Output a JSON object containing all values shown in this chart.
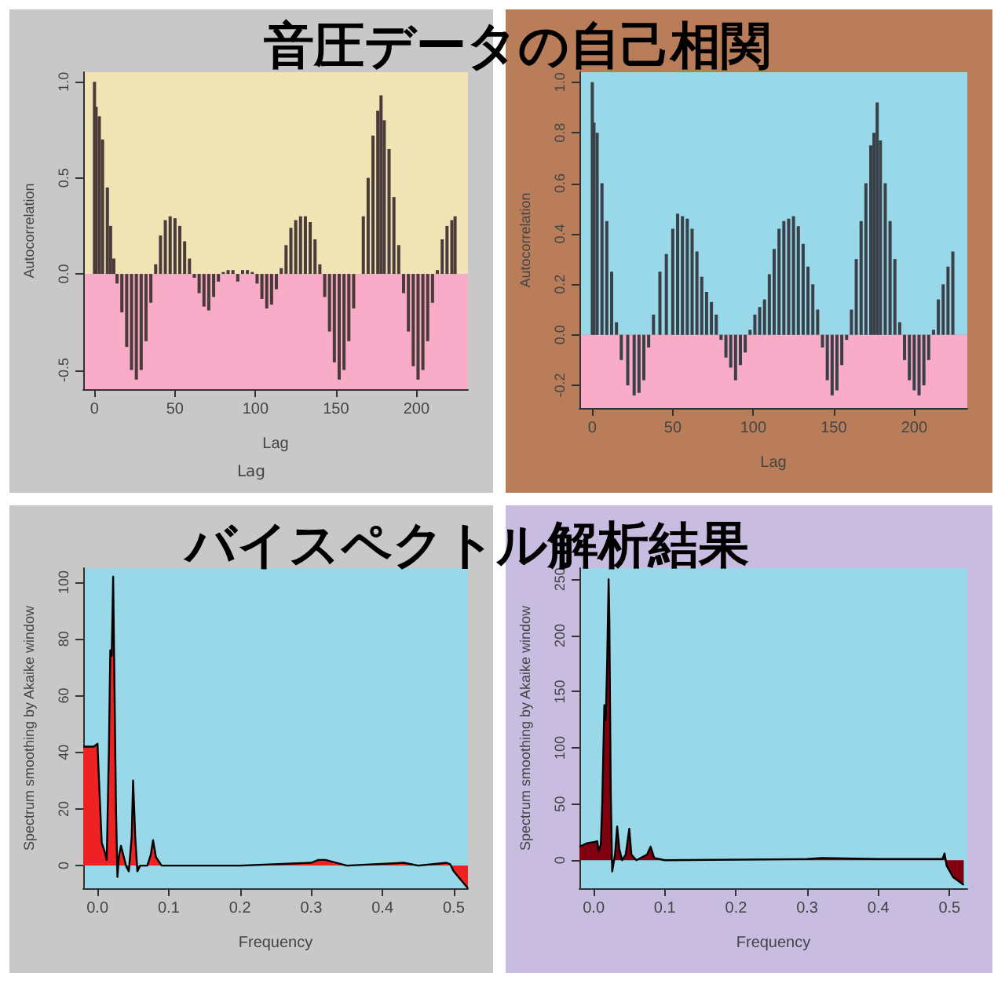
{
  "chart_data": [
    {
      "type": "bar",
      "title": "音圧データの自己相関",
      "xlabel": "Lag",
      "ylabel": "Autocorrelation",
      "annotations": [
        "Lag"
      ],
      "grid": false,
      "xlim": [
        -7,
        232
      ],
      "xticks": [
        0,
        50,
        100,
        150,
        200
      ],
      "ylim": [
        -0.6,
        1.05
      ],
      "yticks": [
        {
          "value": -0.5,
          "label": "-0.5"
        },
        {
          "value": 0,
          "label": "0.0"
        },
        {
          "value": 0.5,
          "label": "0.5"
        },
        {
          "value": 1,
          "label": "1.0"
        }
      ],
      "bands": [
        {
          "axis": "y",
          "from": 0,
          "to": 1.05,
          "color": "#f0e4b4"
        },
        {
          "axis": "y",
          "from": -0.6,
          "to": 0,
          "color": "#f8acc8"
        }
      ],
      "x": [
        0,
        1,
        3,
        5,
        8,
        10,
        12,
        14,
        17,
        20,
        23,
        26,
        29,
        32,
        35,
        38,
        41,
        44,
        47,
        50,
        53,
        56,
        59,
        62,
        65,
        68,
        71,
        74,
        77,
        80,
        83,
        86,
        89,
        92,
        95,
        98,
        101,
        104,
        107,
        110,
        113,
        116,
        119,
        122,
        125,
        128,
        131,
        134,
        137,
        140,
        143,
        146,
        149,
        152,
        155,
        158,
        161,
        164,
        167,
        170,
        173,
        176,
        178,
        180,
        183,
        186,
        189,
        192,
        195,
        198,
        201,
        204,
        207,
        210,
        213,
        216,
        219,
        222,
        224
      ],
      "series": [
        {
          "color": "#4a3a3a",
          "values": [
            1.0,
            0.87,
            0.82,
            0.7,
            0.45,
            0.25,
            0.08,
            -0.05,
            -0.2,
            -0.38,
            -0.5,
            -0.55,
            -0.5,
            -0.35,
            -0.15,
            0.05,
            0.2,
            0.28,
            0.3,
            0.29,
            0.25,
            0.17,
            0.08,
            -0.02,
            -0.1,
            -0.17,
            -0.19,
            -0.12,
            -0.04,
            0.01,
            0.02,
            0.02,
            -0.04,
            0.02,
            0.02,
            0.01,
            -0.05,
            -0.13,
            -0.18,
            -0.16,
            -0.08,
            0.03,
            0.15,
            0.24,
            0.28,
            0.3,
            0.3,
            0.27,
            0.18,
            0.05,
            -0.12,
            -0.3,
            -0.46,
            -0.55,
            -0.5,
            -0.35,
            -0.18,
            0.0,
            0.3,
            0.5,
            0.72,
            0.85,
            0.93,
            0.8,
            0.65,
            0.4,
            0.15,
            -0.1,
            -0.3,
            -0.48,
            -0.55,
            -0.5,
            -0.35,
            -0.15,
            0.02,
            0.18,
            0.25,
            0.28,
            0.3
          ]
        }
      ]
    },
    {
      "type": "bar",
      "xlabel": "Lag",
      "ylabel": "Autocorrelation",
      "grid": false,
      "xlim": [
        -8,
        233
      ],
      "xticks": [
        0,
        50,
        100,
        150,
        200
      ],
      "ylim": [
        -0.29,
        1.04
      ],
      "yticks": [
        {
          "value": -0.2,
          "label": "-0.2"
        },
        {
          "value": 0,
          "label": "0.0"
        },
        {
          "value": 0.2,
          "label": "0.2"
        },
        {
          "value": 0.4,
          "label": "0.4"
        },
        {
          "value": 0.6,
          "label": "0.6"
        },
        {
          "value": 0.8,
          "label": "0.8"
        },
        {
          "value": 1,
          "label": "1.0"
        }
      ],
      "bands": [
        {
          "axis": "y",
          "from": 0,
          "to": 1.04,
          "color": "#98d8e8"
        },
        {
          "axis": "y",
          "from": -0.29,
          "to": 0,
          "color": "#f8acc8"
        }
      ],
      "x": [
        0,
        1,
        3,
        6,
        9,
        12,
        15,
        18,
        22,
        26,
        29,
        32,
        35,
        38,
        42,
        46,
        50,
        53,
        56,
        59,
        62,
        65,
        68,
        71,
        74,
        77,
        80,
        83,
        86,
        89,
        92,
        95,
        98,
        101,
        104,
        107,
        110,
        113,
        116,
        119,
        122,
        125,
        128,
        131,
        134,
        137,
        140,
        143,
        146,
        149,
        152,
        155,
        158,
        161,
        164,
        167,
        170,
        173,
        175,
        177,
        179,
        182,
        185,
        188,
        191,
        194,
        197,
        200,
        203,
        206,
        209,
        212,
        215,
        218,
        221,
        224
      ],
      "series": [
        {
          "color": "#3a4048",
          "values": [
            1.0,
            0.84,
            0.8,
            0.6,
            0.45,
            0.25,
            0.05,
            -0.1,
            -0.2,
            -0.24,
            -0.23,
            -0.18,
            -0.05,
            0.08,
            0.25,
            0.32,
            0.42,
            0.48,
            0.47,
            0.46,
            0.42,
            0.33,
            0.23,
            0.17,
            0.13,
            0.08,
            -0.02,
            -0.09,
            -0.13,
            -0.18,
            -0.12,
            -0.07,
            0.02,
            0.08,
            0.11,
            0.14,
            0.24,
            0.34,
            0.42,
            0.45,
            0.46,
            0.47,
            0.43,
            0.36,
            0.27,
            0.2,
            0.1,
            -0.05,
            -0.18,
            -0.24,
            -0.22,
            -0.12,
            -0.02,
            0.1,
            0.3,
            0.45,
            0.6,
            0.75,
            0.8,
            0.92,
            0.77,
            0.6,
            0.45,
            0.3,
            0.05,
            -0.1,
            -0.18,
            -0.22,
            -0.24,
            -0.2,
            -0.1,
            0.02,
            0.14,
            0.2,
            0.27,
            0.33
          ]
        }
      ]
    },
    {
      "type": "area",
      "title": "バイスペクトル解析結果",
      "xlabel": "Frequency",
      "ylabel": "Spectrum smoothing by Akaike window",
      "grid": false,
      "xlim": [
        -0.02,
        0.52
      ],
      "xticks": [
        {
          "value": 0,
          "label": "0.0"
        },
        0.1,
        0.2,
        0.3,
        0.4,
        0.5
      ],
      "ylim": [
        -8,
        105
      ],
      "yticks": [
        0,
        20,
        40,
        60,
        80,
        100
      ],
      "bands": [
        {
          "axis": "y",
          "from": -8,
          "to": 105,
          "color": "#98d8e8"
        }
      ],
      "x": [
        -0.02,
        -0.005,
        0,
        0.003,
        0.006,
        0.01,
        0.013,
        0.016,
        0.018,
        0.02,
        0.022,
        0.024,
        0.026,
        0.028,
        0.03,
        0.033,
        0.036,
        0.04,
        0.044,
        0.048,
        0.05,
        0.053,
        0.056,
        0.06,
        0.07,
        0.075,
        0.078,
        0.082,
        0.09,
        0.2,
        0.3,
        0.31,
        0.32,
        0.35,
        0.43,
        0.45,
        0.49,
        0.495,
        0.5,
        0.51,
        0.52
      ],
      "series": [
        {
          "color": "#ee2222",
          "values": [
            42,
            42,
            43,
            25,
            8,
            5,
            2,
            40,
            76,
            74,
            102,
            60,
            20,
            -4,
            3,
            7,
            4,
            0,
            -2,
            10,
            30,
            10,
            -2,
            0,
            0,
            4,
            9,
            3,
            0,
            0,
            1,
            2,
            2,
            0,
            1,
            0,
            1,
            0.5,
            -2,
            -5,
            -8
          ]
        }
      ]
    },
    {
      "type": "area",
      "xlabel": "Frequency",
      "ylabel": "Spectrum smoothing by Akaike window",
      "grid": false,
      "xlim": [
        -0.02,
        0.525
      ],
      "xticks": [
        {
          "value": 0,
          "label": "0.0"
        },
        0.1,
        0.2,
        0.3,
        0.4,
        0.5
      ],
      "ylim": [
        -25,
        260
      ],
      "yticks": [
        0,
        50,
        100,
        150,
        200,
        250
      ],
      "bands": [
        {
          "axis": "y",
          "from": -25,
          "to": 260,
          "color": "#98d8e8"
        }
      ],
      "x": [
        -0.02,
        -0.01,
        0,
        0.005,
        0.007,
        0.01,
        0.012,
        0.015,
        0.017,
        0.019,
        0.021,
        0.022,
        0.024,
        0.026,
        0.03,
        0.033,
        0.036,
        0.04,
        0.045,
        0.05,
        0.053,
        0.06,
        0.075,
        0.08,
        0.085,
        0.1,
        0.3,
        0.32,
        0.4,
        0.49,
        0.493,
        0.496,
        0.505,
        0.52
      ],
      "series": [
        {
          "color": "#800010",
          "values": [
            12,
            15,
            16,
            17,
            8,
            14,
            50,
            138,
            125,
            178,
            250,
            215,
            60,
            -10,
            5,
            30,
            10,
            0,
            5,
            28,
            5,
            0,
            5,
            12,
            2,
            0,
            1,
            2,
            1,
            1,
            6,
            -5,
            -15,
            -22
          ]
        }
      ]
    }
  ]
}
